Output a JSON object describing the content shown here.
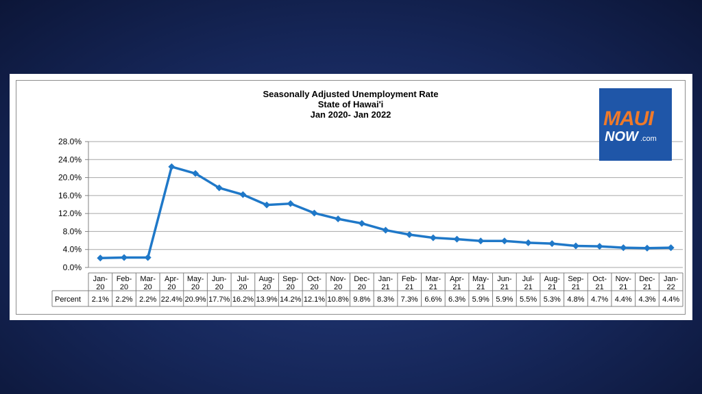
{
  "logo": {
    "maui": "MAUI",
    "now": "NOW",
    "com": ".com"
  },
  "chart_data": {
    "type": "line",
    "title": "Seasonally Adjusted Unemployment Rate",
    "subtitle": "State of Hawai'i",
    "subtitle2": "Jan 2020- Jan 2022",
    "xlabel": "",
    "ylabel": "",
    "ylim": [
      0,
      28
    ],
    "yticks": [
      "0.0%",
      "4.0%",
      "8.0%",
      "12.0%",
      "16.0%",
      "20.0%",
      "24.0%",
      "28.0%"
    ],
    "categories": [
      [
        "Jan-",
        "20"
      ],
      [
        "Feb-",
        "20"
      ],
      [
        "Mar-",
        "20"
      ],
      [
        "Apr-",
        "20"
      ],
      [
        "May-",
        "20"
      ],
      [
        "Jun-",
        "20"
      ],
      [
        "Jul-",
        "20"
      ],
      [
        "Aug-",
        "20"
      ],
      [
        "Sep-",
        "20"
      ],
      [
        "Oct-",
        "20"
      ],
      [
        "Nov-",
        "20"
      ],
      [
        "Dec-",
        "20"
      ],
      [
        "Jan-",
        "21"
      ],
      [
        "Feb-",
        "21"
      ],
      [
        "Mar-",
        "21"
      ],
      [
        "Apr-",
        "21"
      ],
      [
        "May-",
        "21"
      ],
      [
        "Jun-",
        "21"
      ],
      [
        "Jul-",
        "21"
      ],
      [
        "Aug-",
        "21"
      ],
      [
        "Sep-",
        "21"
      ],
      [
        "Oct-",
        "21"
      ],
      [
        "Nov-",
        "21"
      ],
      [
        "Dec-",
        "21"
      ],
      [
        "Jan-",
        "22"
      ]
    ],
    "series": [
      {
        "name": "Percent",
        "values": [
          2.1,
          2.2,
          2.2,
          22.4,
          20.9,
          17.7,
          16.2,
          13.9,
          14.2,
          12.1,
          10.8,
          9.8,
          8.3,
          7.3,
          6.6,
          6.3,
          5.9,
          5.9,
          5.5,
          5.3,
          4.8,
          4.7,
          4.4,
          4.3,
          4.4
        ],
        "labels": [
          "2.1%",
          "2.2%",
          "2.2%",
          "22.4%",
          "20.9%",
          "17.7%",
          "16.2%",
          "13.9%",
          "14.2%",
          "12.1%",
          "10.8%",
          "9.8%",
          "8.3%",
          "7.3%",
          "6.6%",
          "6.3%",
          "5.9%",
          "5.9%",
          "5.5%",
          "5.3%",
          "4.8%",
          "4.7%",
          "4.4%",
          "4.3%",
          "4.4%"
        ]
      }
    ],
    "grid": true,
    "line_color": "#1f78c8"
  }
}
